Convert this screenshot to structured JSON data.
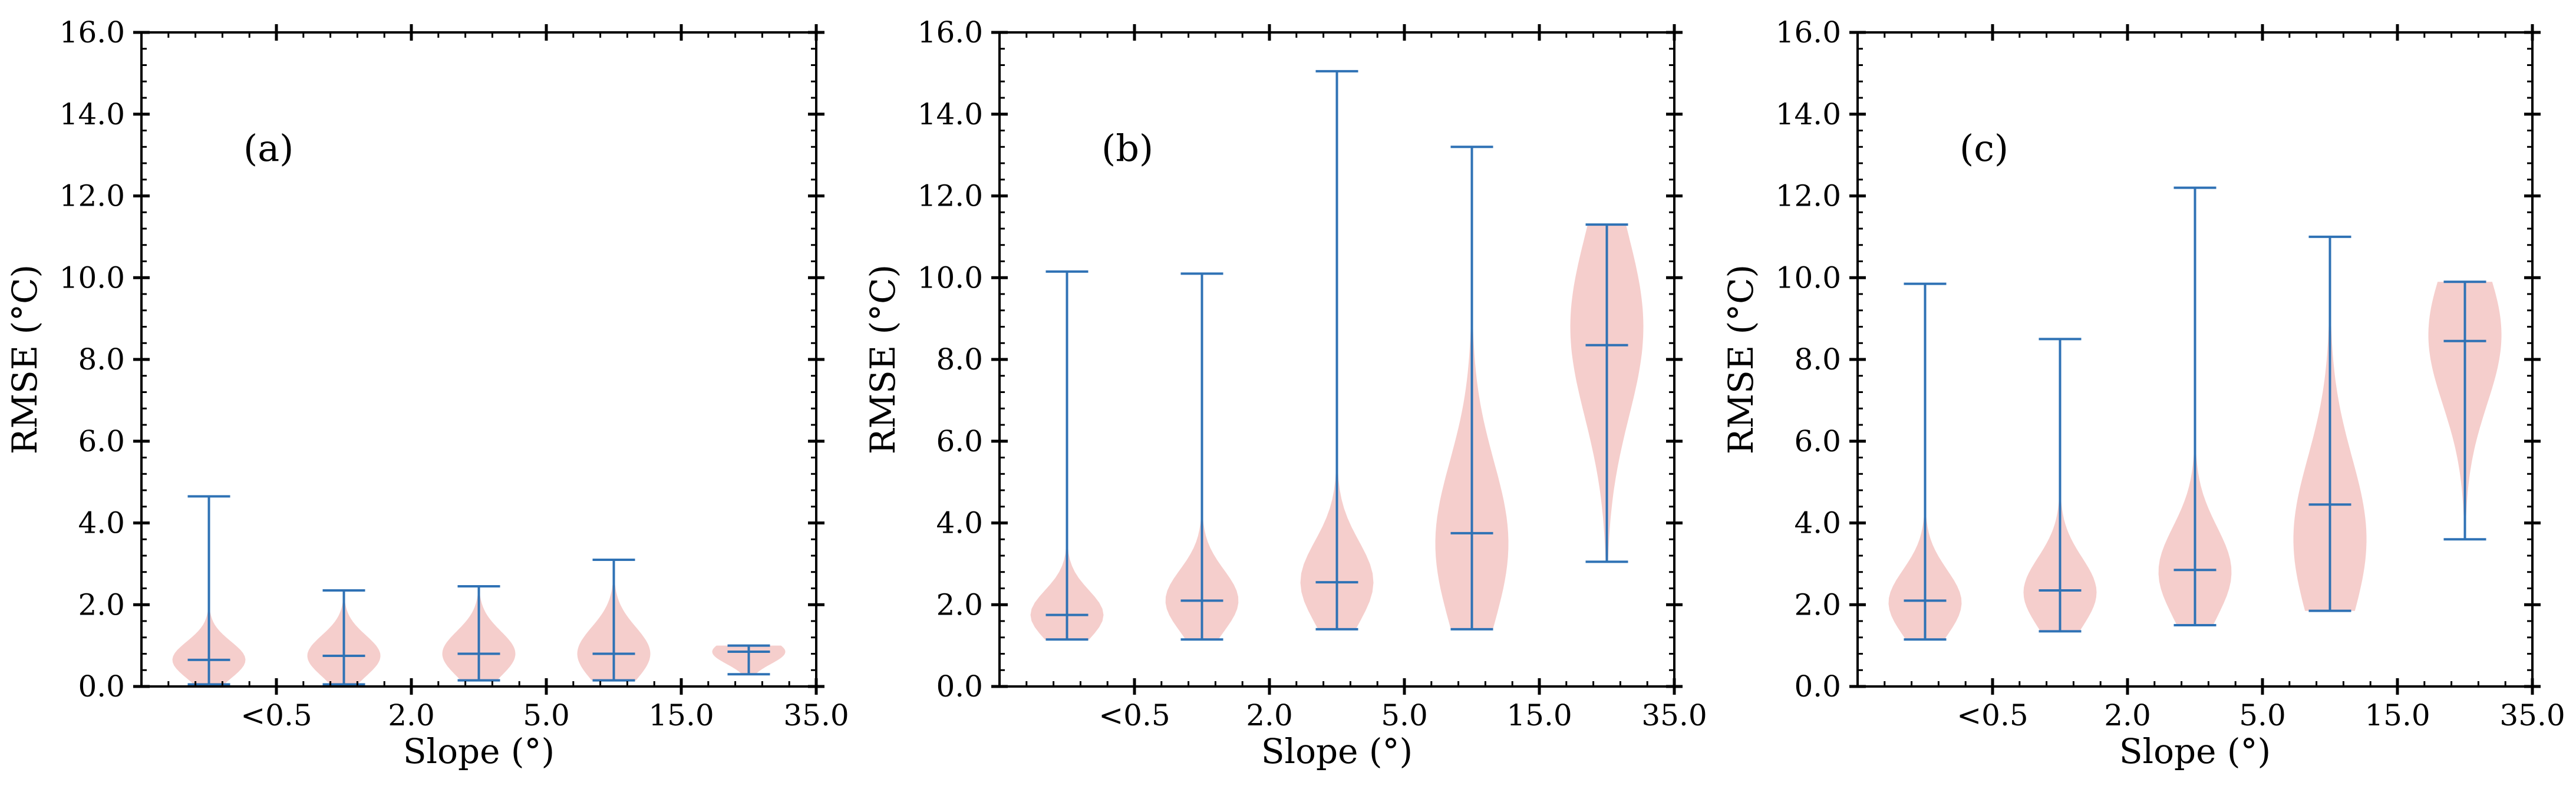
{
  "chart_data": [
    {
      "type": "violin",
      "panel_label": "(a)",
      "xlabel": "Slope (°)",
      "ylabel": "RMSE (°C)",
      "ylim": [
        0,
        16
      ],
      "yticks": [
        "0.0",
        "2.0",
        "4.0",
        "6.0",
        "8.0",
        "10.0",
        "12.0",
        "14.0",
        "16.0"
      ],
      "xticks": [
        "<0.5",
        "2.0",
        "5.0",
        "15.0",
        "35.0"
      ],
      "violins": [
        {
          "min": 0.05,
          "median": 0.65,
          "max": 4.65,
          "mode": 0.65,
          "spread": 0.45
        },
        {
          "min": 0.05,
          "median": 0.75,
          "max": 2.35,
          "mode": 0.75,
          "spread": 0.5
        },
        {
          "min": 0.15,
          "median": 0.8,
          "max": 2.45,
          "mode": 0.8,
          "spread": 0.55
        },
        {
          "min": 0.15,
          "median": 0.8,
          "max": 3.1,
          "mode": 0.8,
          "spread": 0.65
        },
        {
          "min": 0.3,
          "median": 0.85,
          "max": 1.0,
          "mode": 0.85,
          "spread": 0.3
        }
      ]
    },
    {
      "type": "violin",
      "panel_label": "(b)",
      "xlabel": "Slope (°)",
      "ylabel": "RMSE (°C)",
      "ylim": [
        0,
        16
      ],
      "yticks": [
        "0.0",
        "2.0",
        "4.0",
        "6.0",
        "8.0",
        "10.0",
        "12.0",
        "14.0",
        "16.0"
      ],
      "xticks": [
        "<0.5",
        "2.0",
        "5.0",
        "15.0",
        "35.0"
      ],
      "violins": [
        {
          "min": 1.15,
          "median": 1.75,
          "max": 10.15,
          "mode": 1.75,
          "spread": 0.6
        },
        {
          "min": 1.15,
          "median": 2.1,
          "max": 10.1,
          "mode": 2.1,
          "spread": 0.75
        },
        {
          "min": 1.4,
          "median": 2.55,
          "max": 15.05,
          "mode": 2.55,
          "spread": 1.0
        },
        {
          "min": 1.4,
          "median": 3.75,
          "max": 13.2,
          "mode": 3.5,
          "spread": 2.0
        },
        {
          "min": 3.05,
          "median": 8.35,
          "max": 11.3,
          "mode": 8.8,
          "spread": 2.2
        }
      ]
    },
    {
      "type": "violin",
      "panel_label": "(c)",
      "xlabel": "Slope (°)",
      "ylabel": "RMSE (°C)",
      "ylim": [
        0,
        16
      ],
      "yticks": [
        "0.0",
        "2.0",
        "4.0",
        "6.0",
        "8.0",
        "10.0",
        "12.0",
        "14.0",
        "16.0"
      ],
      "xticks": [
        "<0.5",
        "2.0",
        "5.0",
        "15.0",
        "35.0"
      ],
      "violins": [
        {
          "min": 1.15,
          "median": 2.1,
          "max": 9.85,
          "mode": 2.05,
          "spread": 0.8
        },
        {
          "min": 1.35,
          "median": 2.35,
          "max": 8.5,
          "mode": 2.3,
          "spread": 0.85
        },
        {
          "min": 1.5,
          "median": 2.85,
          "max": 12.2,
          "mode": 2.8,
          "spread": 1.1
        },
        {
          "min": 1.85,
          "median": 4.45,
          "max": 11.0,
          "mode": 3.6,
          "spread": 2.0
        },
        {
          "min": 3.6,
          "median": 8.45,
          "max": 9.9,
          "mode": 8.6,
          "spread": 1.7
        }
      ]
    }
  ],
  "colors": {
    "violin_fill": "#f4c9c6",
    "line": "#2f72b5",
    "axis": "#000000"
  }
}
